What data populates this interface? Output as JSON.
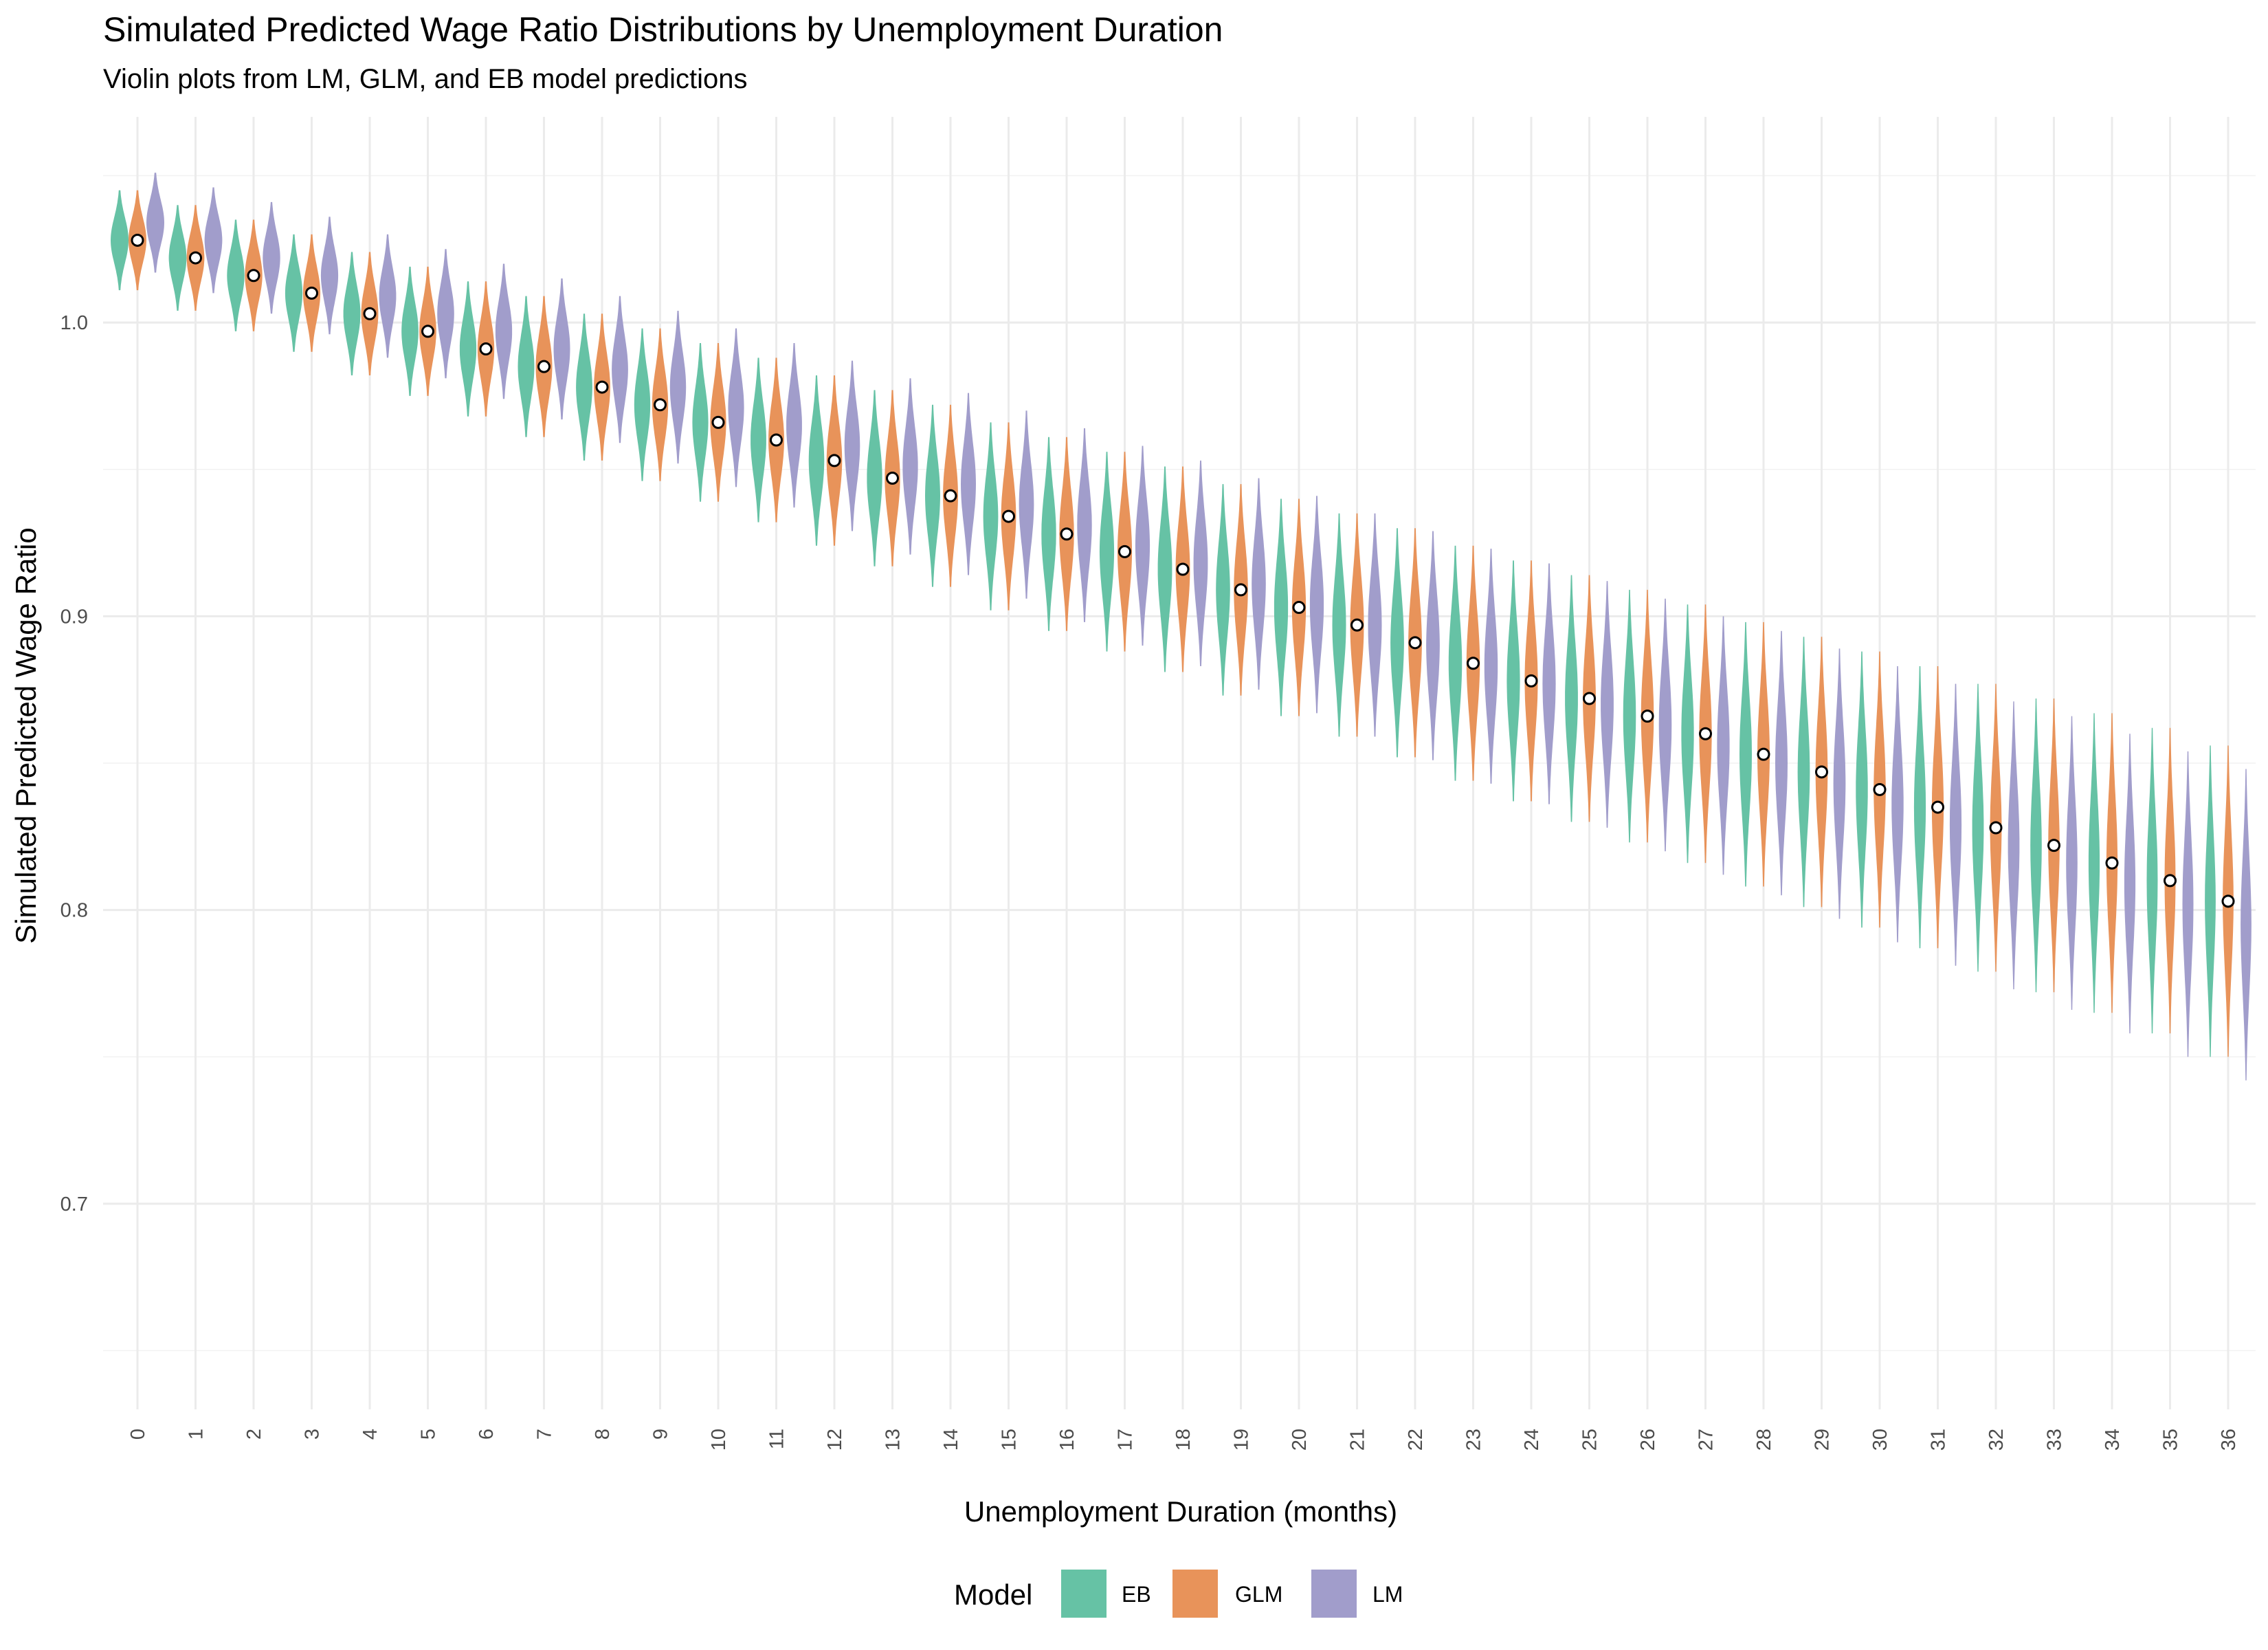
{
  "chart_data": {
    "type": "violin",
    "title": "Simulated Predicted Wage Ratio Distributions by Unemployment Duration",
    "subtitle": "Violin plots from LM, GLM, and EB model predictions",
    "xlabel": "Unemployment Duration (months)",
    "ylabel": "Simulated Predicted Wage Ratio",
    "categories": [
      "0",
      "1",
      "2",
      "3",
      "4",
      "5",
      "6",
      "7",
      "8",
      "9",
      "10",
      "11",
      "12",
      "13",
      "14",
      "15",
      "16",
      "17",
      "18",
      "19",
      "20",
      "21",
      "22",
      "23",
      "24",
      "25",
      "26",
      "27",
      "28",
      "29",
      "30",
      "31",
      "32",
      "33",
      "34",
      "35",
      "36"
    ],
    "ylim": [
      0.63,
      1.07
    ],
    "yticks": [
      0.7,
      0.8,
      0.9,
      1.0
    ],
    "ytick_labels": [
      "0.7",
      "0.8",
      "0.9",
      "1.0"
    ],
    "grid": true,
    "legend": {
      "title": "Model",
      "position": "bottom"
    },
    "series": [
      {
        "name": "EB",
        "color": "#66C2A5",
        "offset": -1,
        "center": [
          1.028,
          1.022,
          1.016,
          1.01,
          1.003,
          0.997,
          0.991,
          0.985,
          0.978,
          0.972,
          0.966,
          0.96,
          0.953,
          0.947,
          0.941,
          0.934,
          0.928,
          0.922,
          0.916,
          0.909,
          0.903,
          0.897,
          0.891,
          0.884,
          0.878,
          0.872,
          0.866,
          0.86,
          0.853,
          0.847,
          0.841,
          0.835,
          0.828,
          0.822,
          0.816,
          0.81,
          0.803
        ],
        "spread": [
          0.017,
          0.018,
          0.019,
          0.02,
          0.021,
          0.022,
          0.023,
          0.024,
          0.025,
          0.026,
          0.027,
          0.028,
          0.029,
          0.03,
          0.031,
          0.032,
          0.033,
          0.034,
          0.035,
          0.036,
          0.037,
          0.038,
          0.039,
          0.04,
          0.041,
          0.042,
          0.043,
          0.044,
          0.045,
          0.046,
          0.047,
          0.048,
          0.049,
          0.05,
          0.051,
          0.052,
          0.053
        ]
      },
      {
        "name": "GLM",
        "color": "#E8935A",
        "offset": 0,
        "center": [
          1.028,
          1.022,
          1.016,
          1.01,
          1.003,
          0.997,
          0.991,
          0.985,
          0.978,
          0.972,
          0.966,
          0.96,
          0.953,
          0.947,
          0.941,
          0.934,
          0.928,
          0.922,
          0.916,
          0.909,
          0.903,
          0.897,
          0.891,
          0.884,
          0.878,
          0.872,
          0.866,
          0.86,
          0.853,
          0.847,
          0.841,
          0.835,
          0.828,
          0.822,
          0.816,
          0.81,
          0.803
        ],
        "spread": [
          0.017,
          0.018,
          0.019,
          0.02,
          0.021,
          0.022,
          0.023,
          0.024,
          0.025,
          0.026,
          0.027,
          0.028,
          0.029,
          0.03,
          0.031,
          0.032,
          0.033,
          0.034,
          0.035,
          0.036,
          0.037,
          0.038,
          0.039,
          0.04,
          0.041,
          0.042,
          0.043,
          0.044,
          0.045,
          0.046,
          0.047,
          0.048,
          0.049,
          0.05,
          0.051,
          0.052,
          0.053
        ]
      },
      {
        "name": "LM",
        "color": "#A19DCB",
        "offset": 1,
        "center": [
          1.034,
          1.028,
          1.022,
          1.016,
          1.009,
          1.003,
          0.997,
          0.991,
          0.984,
          0.978,
          0.971,
          0.965,
          0.958,
          0.951,
          0.945,
          0.938,
          0.931,
          0.924,
          0.918,
          0.911,
          0.904,
          0.897,
          0.89,
          0.883,
          0.877,
          0.87,
          0.863,
          0.856,
          0.85,
          0.843,
          0.836,
          0.829,
          0.822,
          0.816,
          0.809,
          0.802,
          0.795
        ],
        "spread": [
          0.017,
          0.018,
          0.019,
          0.02,
          0.021,
          0.022,
          0.023,
          0.024,
          0.025,
          0.026,
          0.027,
          0.028,
          0.029,
          0.03,
          0.031,
          0.032,
          0.033,
          0.034,
          0.035,
          0.036,
          0.037,
          0.038,
          0.039,
          0.04,
          0.041,
          0.042,
          0.043,
          0.044,
          0.045,
          0.046,
          0.047,
          0.048,
          0.049,
          0.05,
          0.051,
          0.052,
          0.053
        ]
      }
    ],
    "means": [
      1.028,
      1.022,
      1.016,
      1.01,
      1.003,
      0.997,
      0.991,
      0.985,
      0.978,
      0.972,
      0.966,
      0.96,
      0.953,
      0.947,
      0.941,
      0.934,
      0.928,
      0.922,
      0.916,
      0.909,
      0.903,
      0.897,
      0.891,
      0.884,
      0.878,
      0.872,
      0.866,
      0.86,
      0.853,
      0.847,
      0.841,
      0.835,
      0.828,
      0.822,
      0.816,
      0.81,
      0.803
    ]
  }
}
